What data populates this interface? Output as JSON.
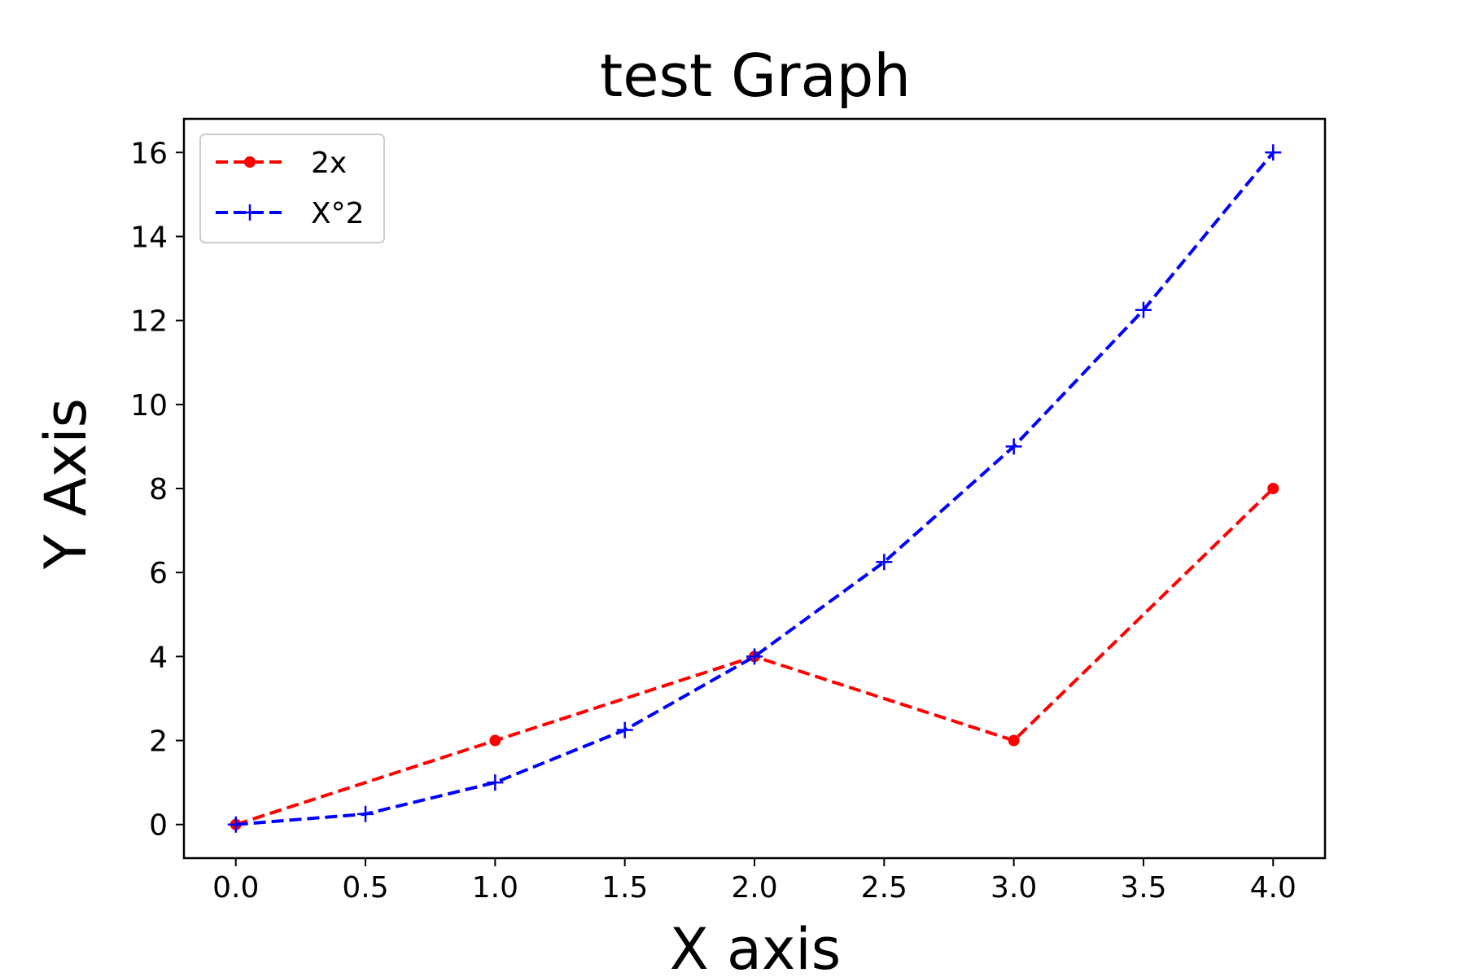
{
  "chart_data": {
    "type": "line",
    "title": "test Graph",
    "xlabel": "X axis",
    "ylabel": "Y Axis",
    "xlim": [
      -0.2,
      4.2
    ],
    "ylim": [
      -0.8,
      16.8
    ],
    "xticks": [
      0.0,
      0.5,
      1.0,
      1.5,
      2.0,
      2.5,
      3.0,
      3.5,
      4.0
    ],
    "xtick_labels": [
      "0.0",
      "0.5",
      "1.0",
      "1.5",
      "2.0",
      "2.5",
      "3.0",
      "3.5",
      "4.0"
    ],
    "yticks": [
      0,
      2,
      4,
      6,
      8,
      10,
      12,
      14,
      16
    ],
    "ytick_labels": [
      "0",
      "2",
      "4",
      "6",
      "8",
      "10",
      "12",
      "14",
      "16"
    ],
    "grid": false,
    "legend_position": "upper-left",
    "series": [
      {
        "name": "2x",
        "color": "#ff0000",
        "linestyle": "dashed",
        "marker": "dot",
        "x": [
          0,
          1,
          2,
          3,
          4
        ],
        "y": [
          0,
          2,
          4,
          2,
          8
        ]
      },
      {
        "name": "X°2",
        "color": "#0000ff",
        "linestyle": "dashed",
        "marker": "plus",
        "x": [
          0,
          0.5,
          1,
          1.5,
          2,
          2.5,
          3,
          3.5,
          4
        ],
        "y": [
          0,
          0.25,
          1,
          2.25,
          4,
          6.25,
          9,
          12.25,
          16
        ]
      }
    ]
  }
}
